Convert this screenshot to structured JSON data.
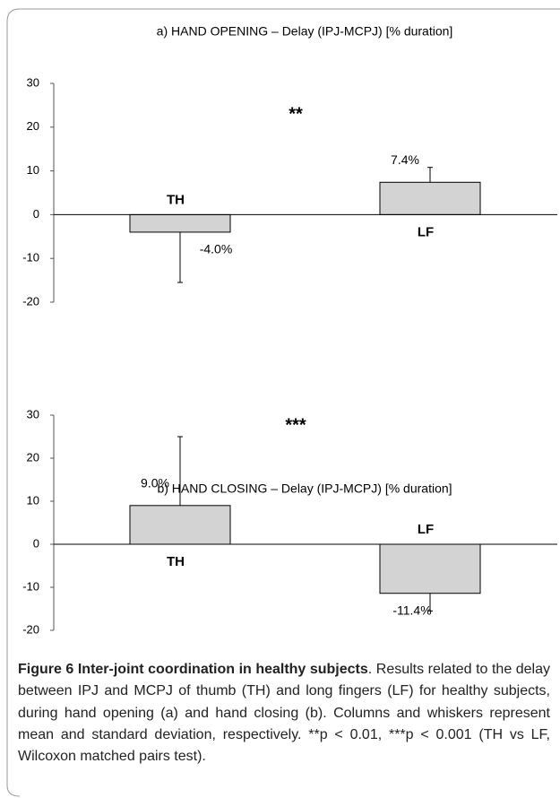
{
  "chart_data": [
    {
      "type": "bar",
      "title": "a) HAND OPENING – Delay (IPJ-MCPJ) [% duration]",
      "categories": [
        "TH",
        "LF"
      ],
      "values": [
        -4.0,
        7.4
      ],
      "errors": [
        11.5,
        3.4
      ],
      "value_labels": [
        "-4.0%",
        "7.4%"
      ],
      "color": "#d3d3d3",
      "annotation": "**",
      "ylim": [
        -20,
        30
      ],
      "yticks": [
        -20,
        -10,
        0,
        10,
        20,
        30
      ]
    },
    {
      "type": "bar",
      "title": "b) HAND CLOSING – Delay (IPJ-MCPJ) [% duration]",
      "categories": [
        "TH",
        "LF"
      ],
      "values": [
        9.0,
        -11.4
      ],
      "errors": [
        16.0,
        4.1
      ],
      "value_labels": [
        "9.0%",
        "-11.4%"
      ],
      "color": "#d3d3d3",
      "annotation": "***",
      "ylim": [
        -20,
        30
      ],
      "yticks": [
        -20,
        -10,
        0,
        10,
        20,
        30
      ]
    }
  ],
  "caption": {
    "title": "Figure 6 Inter-joint coordination in healthy subjects",
    "text": ". Results related to the delay between IPJ and MCPJ of thumb (TH) and long fingers (LF) for healthy subjects, during hand opening (a) and hand closing (b). Columns and whiskers represent mean and standard deviation, respectively. **p < 0.01, ***p < 0.001 (TH vs LF, Wilcoxon matched pairs test)."
  }
}
